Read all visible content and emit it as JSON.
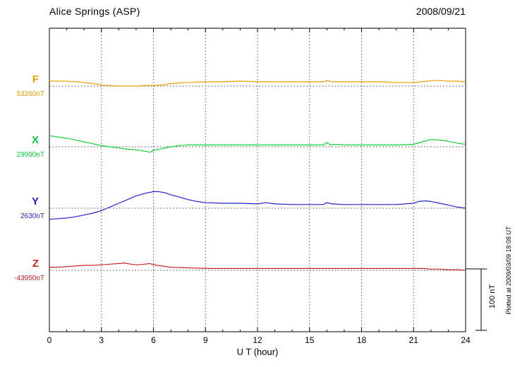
{
  "header": {
    "station": "Alice Springs (ASP)",
    "date": "2008/09/21"
  },
  "xaxis": {
    "label": "U T (hour)",
    "min": 0,
    "max": 24,
    "ticks": [
      0,
      3,
      6,
      9,
      12,
      15,
      18,
      21,
      24
    ]
  },
  "scale_bar": {
    "label": "100 nT",
    "span_nT": 100
  },
  "side_note": "Plotted at 2009/03/09 18:08 UT",
  "chart_data": {
    "type": "line",
    "title": "Alice Springs (ASP)",
    "subtitle": "Magnetogram 2008/09/21",
    "xlabel": "U T (hour)",
    "xlim": [
      0,
      24
    ],
    "grid": "vertical dotted gridlines every 3 hours; dotted horizontal baseline for each component",
    "legend_position": "left margin (component letter + baseline value)",
    "scale_reference": "100 nT vertical bar at right",
    "series": [
      {
        "name": "F",
        "baseline_label": "53260nT",
        "baseline_nT": 53260,
        "color": "#e8a000",
        "x": [
          0,
          0.5,
          1,
          1.5,
          2,
          2.5,
          3,
          3.5,
          4,
          4.5,
          5,
          5.5,
          6,
          6.5,
          7,
          8,
          9,
          10,
          11,
          12,
          13,
          14,
          15,
          15.8,
          16,
          16.3,
          17,
          18,
          19,
          20,
          21,
          21.5,
          22,
          22.5,
          23,
          23.5,
          24
        ],
        "offsets_nT": [
          8,
          8,
          8,
          7,
          6,
          4,
          2,
          1,
          0,
          0,
          0,
          1,
          1,
          2,
          4,
          6,
          7,
          7,
          8,
          7,
          7,
          7,
          7,
          7,
          9,
          7,
          7,
          7,
          7,
          6,
          6,
          7,
          9,
          9,
          8,
          8,
          7
        ]
      },
      {
        "name": "X",
        "baseline_label": "29990nT",
        "baseline_nT": 29990,
        "color": "#14cc3c",
        "x": [
          0,
          0.5,
          1,
          1.5,
          2,
          2.5,
          3,
          3.5,
          4,
          4.5,
          5,
          5.5,
          5.8,
          6,
          6.5,
          7,
          7.5,
          8,
          9,
          10,
          11,
          12,
          13,
          14,
          15,
          15.8,
          16,
          16.2,
          16.5,
          17,
          18,
          19,
          20,
          21,
          21.5,
          22,
          22.5,
          23,
          23.5,
          24
        ],
        "offsets_nT": [
          18,
          16,
          14,
          11,
          8,
          5,
          2,
          0,
          -2,
          -4,
          -5,
          -7,
          -9,
          -6,
          -3,
          0,
          2,
          3,
          3,
          3,
          3,
          3,
          3,
          3,
          3,
          3,
          7,
          3,
          4,
          3,
          3,
          3,
          3,
          4,
          8,
          12,
          11,
          9,
          6,
          4
        ]
      },
      {
        "name": "Y",
        "baseline_label": "2630nT",
        "baseline_nT": 2630,
        "color": "#2222cc",
        "x": [
          0,
          0.5,
          1,
          1.5,
          2,
          2.5,
          3,
          3.5,
          4,
          4.5,
          5,
          5.5,
          6,
          6.3,
          6.7,
          7,
          7.5,
          8,
          8.5,
          9,
          10,
          11,
          12,
          12.5,
          13,
          14,
          15,
          15.8,
          16,
          16.3,
          17,
          18,
          19,
          20,
          21,
          21.3,
          21.7,
          22,
          22.5,
          23,
          23.5,
          24
        ],
        "offsets_nT": [
          -18,
          -17,
          -16,
          -14,
          -11,
          -8,
          -4,
          2,
          8,
          14,
          20,
          24,
          27,
          27,
          25,
          22,
          18,
          14,
          11,
          9,
          8,
          8,
          7,
          9,
          7,
          6,
          6,
          6,
          9,
          7,
          6,
          6,
          6,
          6,
          8,
          11,
          12,
          11,
          8,
          5,
          2,
          0
        ]
      },
      {
        "name": "Z",
        "baseline_label": "-43950nT",
        "baseline_nT": -43950,
        "color": "#cc2222",
        "x": [
          0,
          0.5,
          1,
          1.5,
          2,
          2.5,
          3,
          3.5,
          4,
          4.3,
          4.7,
          5,
          5.5,
          5.8,
          6,
          6.5,
          7,
          8,
          9,
          10,
          11,
          12,
          13,
          14,
          15,
          16,
          17,
          18,
          19,
          20,
          21,
          21.5,
          22,
          22.5,
          23,
          23.5,
          24
        ],
        "offsets_nT": [
          5,
          5,
          6,
          7,
          8,
          8,
          9,
          10,
          11,
          12,
          10,
          9,
          10,
          11,
          9,
          7,
          5,
          4,
          3,
          3,
          3,
          3,
          3,
          3,
          3,
          3,
          3,
          3,
          3,
          3,
          3,
          3,
          2,
          2,
          1,
          1,
          0
        ]
      }
    ]
  }
}
